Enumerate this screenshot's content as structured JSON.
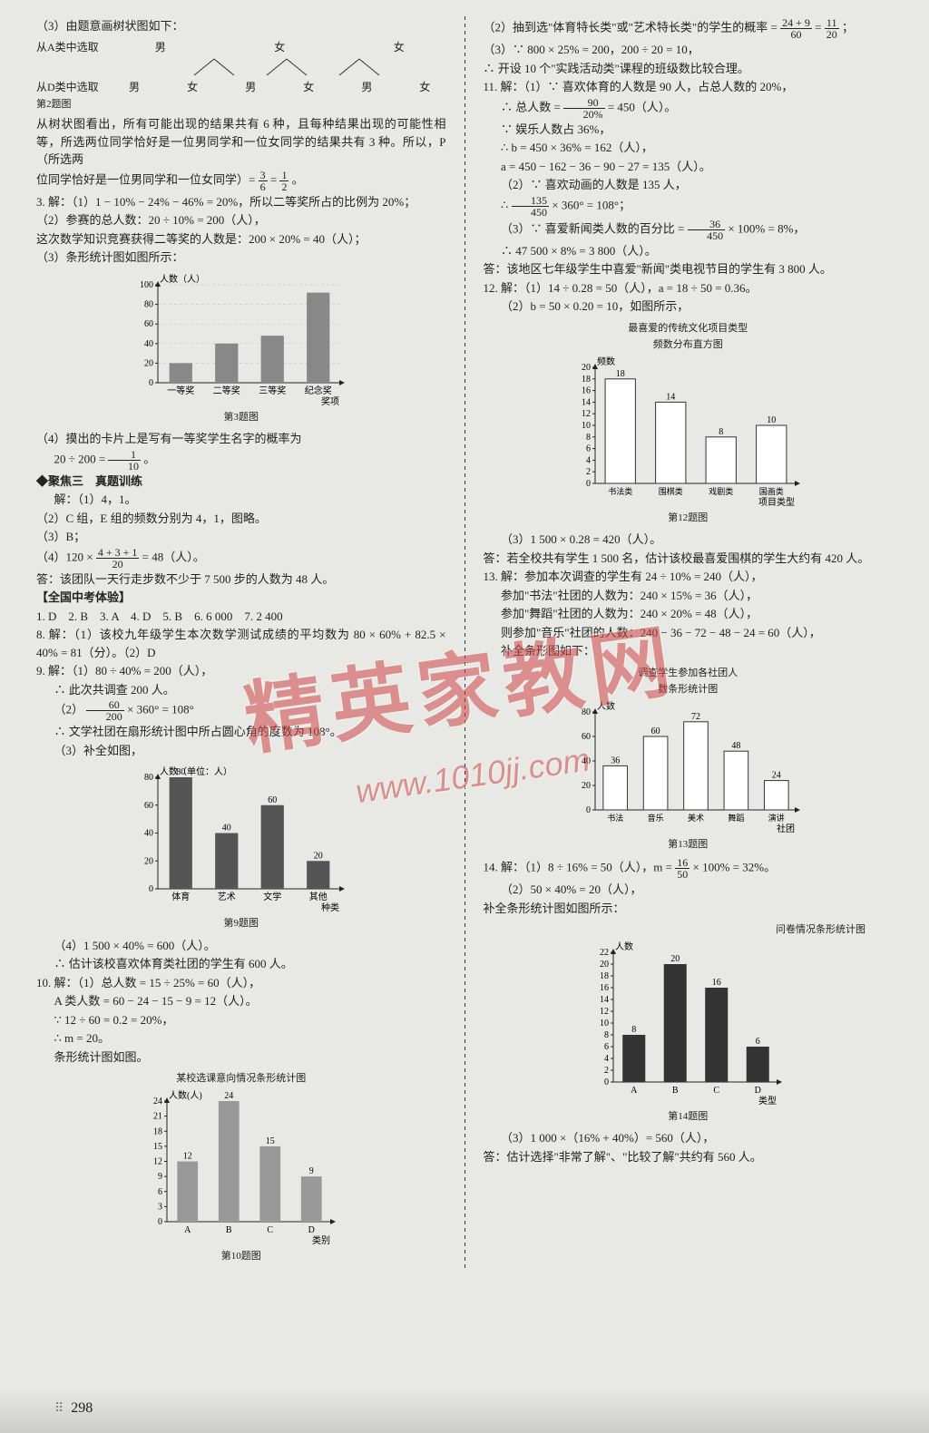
{
  "left": {
    "tree_intro": "（3）由题意画树状图如下：",
    "tree_r1_label": "从A类中选取",
    "tree_r1_items": [
      "男",
      "女",
      "女"
    ],
    "tree_r2_label": "从D类中选取",
    "tree_r2_items": [
      "男",
      "女",
      "男",
      "女",
      "男",
      "女"
    ],
    "tree_caption": "第2题图",
    "p1": "从树状图看出，所有可能出现的结果共有 6 种，且每种结果出现的可能性相等，所选两位同学恰好是一位男同学和一位女同学的结果共有 3 种。所以，P（所选两",
    "p2a": "位同学恰好是一位男同学和一位女同学）= ",
    "frac1_n": "3",
    "frac1_d": "6",
    "p2b": " = ",
    "frac2_n": "1",
    "frac2_d": "2",
    "p2c": "。",
    "q3_1": "3. 解：（1）1 − 10% − 24% − 46% = 20%，所以二等奖所占的比例为 20%；",
    "q3_2": "（2）参赛的总人数：20 ÷ 10% = 200（人），",
    "q3_3": "这次数学知识竞赛获得二等奖的人数是：200 × 20% = 40（人）；",
    "q3_4": "（3）条形统计图如图所示：",
    "chart3": {
      "ylabel": "人数（人）",
      "xlabel": "奖项",
      "categories": [
        "一等奖",
        "二等奖",
        "三等奖",
        "纪念奖"
      ],
      "values": [
        20,
        40,
        48,
        92
      ],
      "yticks": [
        0,
        20,
        40,
        60,
        80,
        100
      ],
      "bar_color": "#888888",
      "grid_color": "#bbb",
      "caption": "第3题图"
    },
    "q3_5a": "（4）摸出的卡片上是写有一等奖学生名字的概率为",
    "q3_5b": "20 ÷ 200 = ",
    "frac3_n": "1",
    "frac3_d": "10",
    "q3_5c": "。",
    "focus3": "◆聚焦三　真题训练",
    "f3_1": "解：（1）4，1。",
    "f3_2": "（2）C 组，E 组的频数分别为 4，1，图略。",
    "f3_3": "（3）B；",
    "f3_4a": "（4）120 × ",
    "frac4_n": "4 + 3 + 1",
    "frac4_d": "20",
    "f3_4b": " = 48（人）。",
    "f3_5": "答：该团队一天行走步数不少于 7 500 步的人数为 48 人。",
    "national": "【全国中考体验】",
    "nat1": "1. D　2. B　3. A　4. D　5. B　6. 6 000　7. 2 400",
    "nat8": "8. 解：（1）该校九年级学生本次数学测试成绩的平均数为 80 × 60% + 82.5 × 40% = 81（分）。（2）D",
    "nat9_1": "9. 解：（1）80 ÷ 40% = 200（人），",
    "nat9_2": "∴ 此次共调查 200 人。",
    "nat9_3a": "（2）",
    "frac5_n": "60",
    "frac5_d": "200",
    "nat9_3b": " × 360° = 108°",
    "nat9_4": "∴ 文学社团在扇形统计图中所占圆心角的度数为 108°。",
    "nat9_5": "（3）补全如图，",
    "chart9": {
      "ylabel": "人数（单位：人）",
      "xlabel": "种类",
      "categories": [
        "体育",
        "艺术",
        "文学",
        "其他"
      ],
      "labels": [
        "80",
        "40",
        "60",
        "20"
      ],
      "values": [
        80,
        40,
        60,
        20
      ],
      "yticks": [
        0,
        20,
        40,
        60,
        80
      ],
      "bar_color": "#555555",
      "caption": "第9题图"
    },
    "nat9_6": "（4）1 500 × 40% = 600（人）。",
    "nat9_7": "∴ 估计该校喜欢体育类社团的学生有 600 人。",
    "nat10_1": "10. 解：（1）总人数 = 15 ÷ 25% = 60（人），",
    "nat10_2": "A 类人数 = 60 − 24 − 15 − 9 = 12（人）。",
    "nat10_3": "∵ 12 ÷ 60 = 0.2 = 20%，",
    "nat10_4": "∴ m = 20。",
    "nat10_5": "条形统计图如图。",
    "chart10": {
      "title": "某校选课意向情况条形统计图",
      "ylabel": "人数(人)",
      "xlabel": "类别",
      "categories": [
        "A",
        "B",
        "C",
        "D"
      ],
      "labels": [
        "12",
        "24",
        "15",
        "9"
      ],
      "values": [
        12,
        24,
        15,
        9
      ],
      "yticks": [
        0,
        3,
        6,
        9,
        12,
        15,
        18,
        21,
        24
      ],
      "bar_color": "#999999",
      "caption": "第10题图"
    }
  },
  "right": {
    "r1a": "（2）抽到选\"体育特长类\"或\"艺术特长类\"的学生的概率 = ",
    "frac_r1_n": "24 + 9",
    "frac_r1_d": "60",
    "r1b": " = ",
    "frac_r2_n": "11",
    "frac_r2_d": "20",
    "r1c": "；",
    "r2": "（3）∵ 800 × 25% = 200，200 ÷ 20 = 10，",
    "r3": "∴ 开设 10 个\"实践活动类\"课程的班级数比较合理。",
    "q11_1": "11. 解：（1）∵ 喜欢体育的人数是 90 人，占总人数的 20%，",
    "q11_2a": "∴ 总人数 = ",
    "frac_r3_n": "90",
    "frac_r3_d": "20%",
    "q11_2b": " = 450（人）。",
    "q11_3": "∵ 娱乐人数占 36%，",
    "q11_4": "∴ b = 450 × 36% = 162（人），",
    "q11_5": "a = 450 − 162 − 36 − 90 − 27 = 135（人）。",
    "q11_6": "（2）∵ 喜欢动画的人数是 135 人，",
    "q11_7a": "∴ ",
    "frac_r4_n": "135",
    "frac_r4_d": "450",
    "q11_7b": " × 360° = 108°；",
    "q11_8a": "（3）∵ 喜爱新闻类人数的百分比 = ",
    "frac_r5_n": "36",
    "frac_r5_d": "450",
    "q11_8b": " × 100% = 8%，",
    "q11_9": "∴ 47 500 × 8% = 3 800（人）。",
    "q11_10": "答：该地区七年级学生中喜爱\"新闻\"类电视节目的学生有 3 800 人。",
    "q12_1": "12. 解：（1）14 ÷ 0.28 = 50（人），a = 18 ÷ 50 = 0.36。",
    "q12_2": "（2）b = 50 × 0.20 = 10，如图所示，",
    "chart12": {
      "title1": "最喜爱的传统文化项目类型",
      "title2": "频数分布直方图",
      "ylabel": "频数",
      "xlabel": "项目类型",
      "categories": [
        "书法类",
        "围棋类",
        "戏剧类",
        "国画类"
      ],
      "labels": [
        "18",
        "14",
        "8",
        "10"
      ],
      "values": [
        18,
        14,
        8,
        10
      ],
      "yticks": [
        0,
        2,
        4,
        6,
        8,
        10,
        12,
        14,
        16,
        18,
        20
      ],
      "bar_color": "#ffffff",
      "bar_stroke": "#333",
      "caption": "第12题图"
    },
    "q12_3": "（3）1 500 × 0.28 = 420（人）。",
    "q12_4": "答：若全校共有学生 1 500 名，估计该校最喜爱围棋的学生大约有 420 人。",
    "q13_1": "13. 解：参加本次调查的学生有 24 ÷ 10% = 240（人），",
    "q13_2": "参加\"书法\"社团的人数为：240 × 15% = 36（人），",
    "q13_3": "参加\"舞蹈\"社团的人数为：240 × 20% = 48（人），",
    "q13_4": "则参加\"音乐\"社团的人数：240 − 36 − 72 − 48 − 24 = 60（人），",
    "q13_5": "补全条形图如下：",
    "chart13": {
      "title1": "调查学生参加各社团人",
      "title2": "数条形统计图",
      "ylabel": "人数",
      "xlabel": "社团",
      "categories": [
        "书法",
        "音乐",
        "美术",
        "舞蹈",
        "演讲"
      ],
      "labels": [
        "36",
        "60",
        "72",
        "48",
        "24"
      ],
      "values": [
        36,
        60,
        72,
        48,
        24
      ],
      "yticks": [
        0,
        20,
        40,
        60,
        80
      ],
      "bar_color": "#ffffff",
      "bar_stroke": "#333",
      "caption": "第13题图"
    },
    "q14_1a": "14. 解：（1）8 ÷ 16% = 50（人），m = ",
    "frac_r6_n": "16",
    "frac_r6_d": "50",
    "q14_1b": " × 100% = 32%。",
    "q14_2": "（2）50 × 40% = 20（人），",
    "q14_3": "补全条形统计图如图所示：",
    "chart14": {
      "title": "问卷情况条形统计图",
      "ylabel": "人数",
      "xlabel": "类型",
      "categories": [
        "A",
        "B",
        "C",
        "D"
      ],
      "labels": [
        "8",
        "20",
        "16",
        "6"
      ],
      "values": [
        8,
        20,
        16,
        6
      ],
      "yticks": [
        0,
        2,
        4,
        6,
        8,
        10,
        12,
        14,
        16,
        18,
        20,
        22
      ],
      "bar_color": "#333333",
      "caption": "第14题图"
    },
    "q14_4": "（3）1 000 ×（16% + 40%）= 560（人），",
    "q14_5": "答：估计选择\"非常了解\"、\"比较了解\"共约有 560 人。"
  },
  "page": "298",
  "watermark": {
    "main": "精英家教网",
    "sub": "www.1010jj.com"
  }
}
